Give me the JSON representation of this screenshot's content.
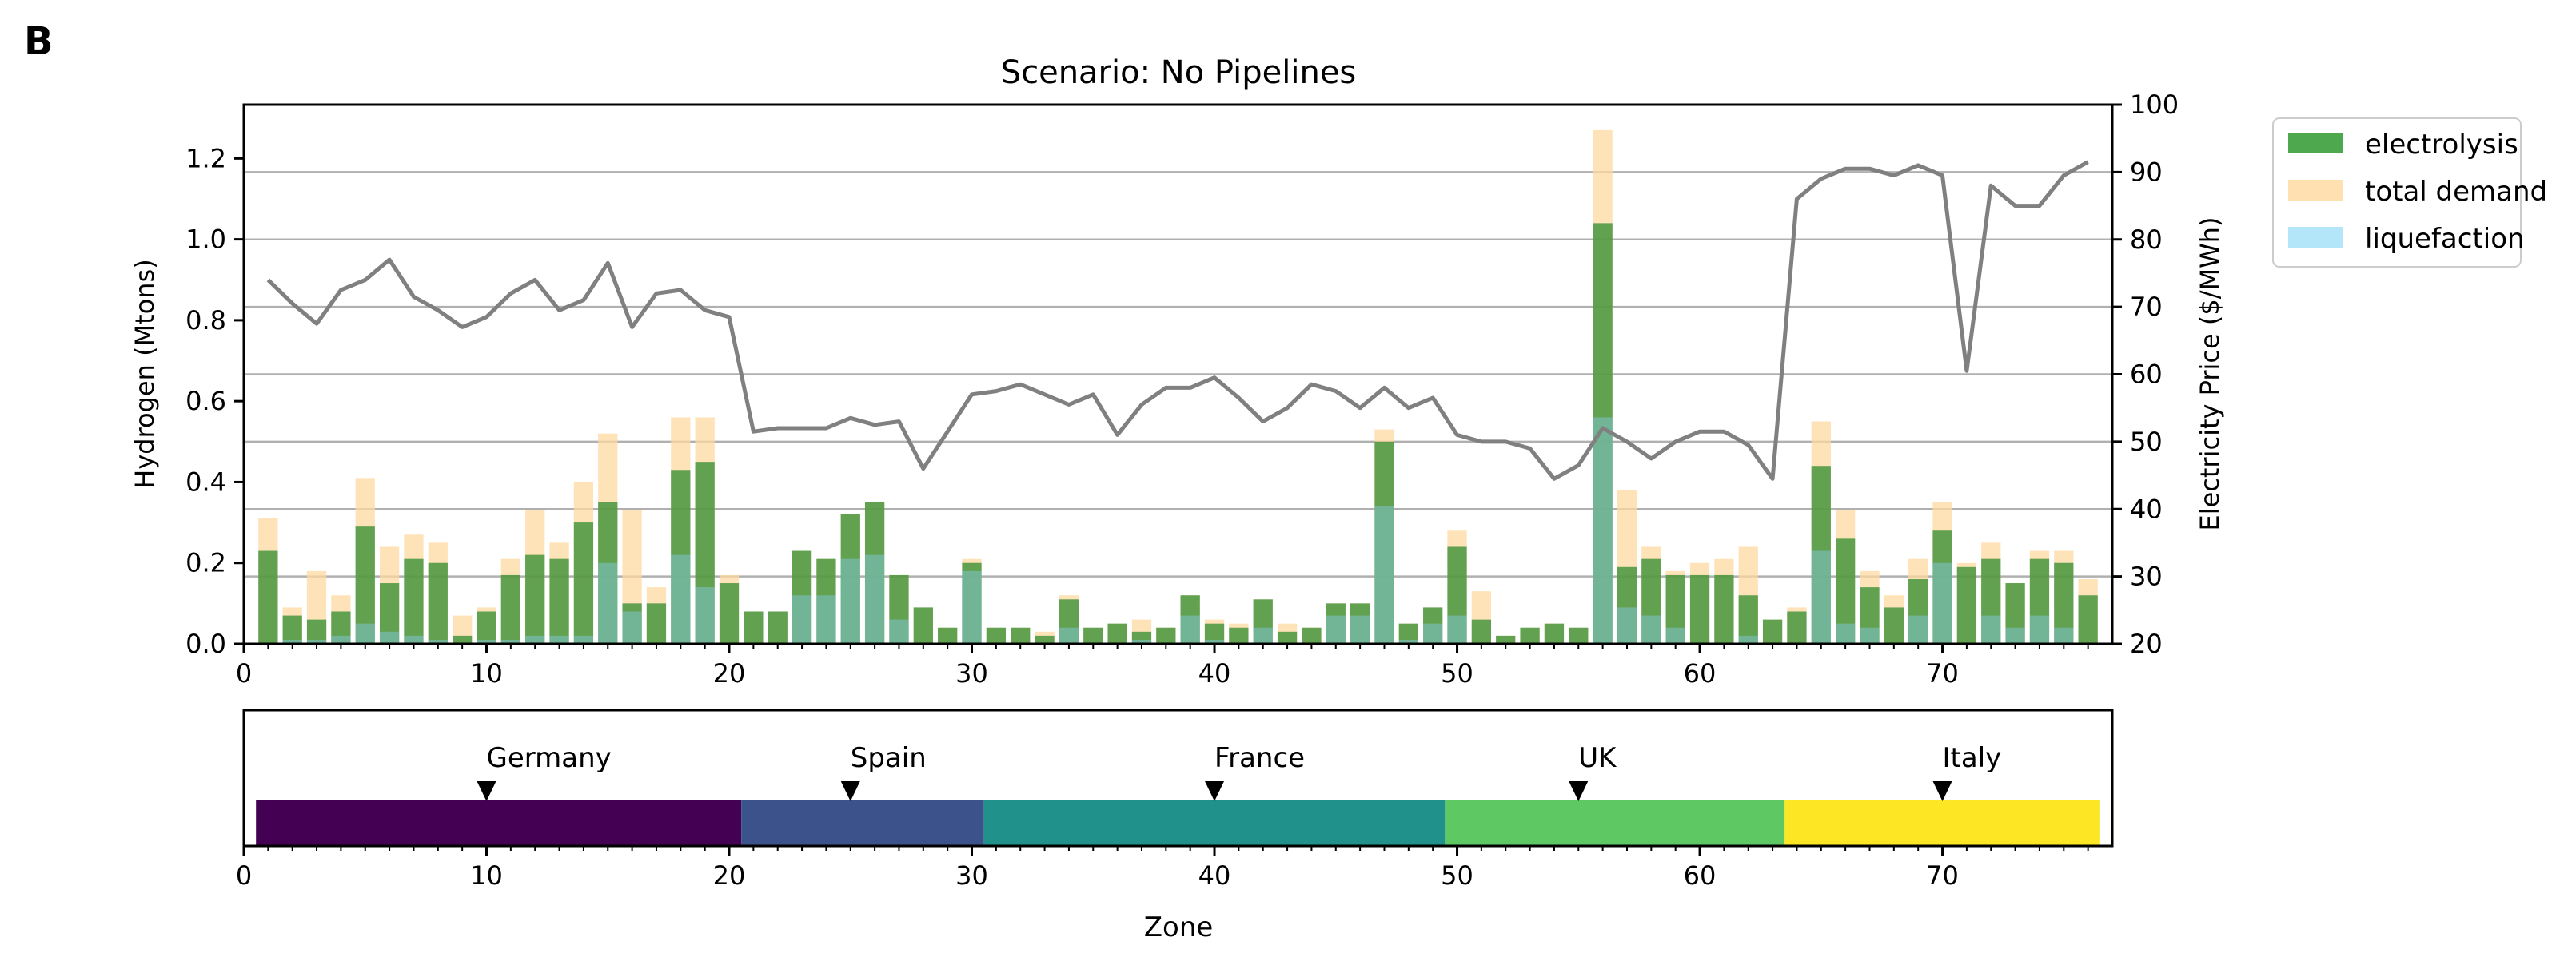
{
  "panel_label": "B",
  "chart_data": [
    {
      "type": "bar+line",
      "title": "Scenario: No Pipelines",
      "xlabel": "",
      "ylabel": "Hydrogen (Mtons)",
      "y2label": "Electricity Price ($/MWh)",
      "xlim": [
        0,
        77
      ],
      "ylim": [
        0,
        1.333
      ],
      "y2lim": [
        20,
        100
      ],
      "xticks": [
        0,
        10,
        20,
        30,
        40,
        50,
        60,
        70
      ],
      "yticks": [
        0.0,
        0.2,
        0.4,
        0.6,
        0.8,
        1.0,
        1.2
      ],
      "ytick_labels": [
        "0.0",
        "0.2",
        "0.4",
        "0.6",
        "0.8",
        "1.0",
        "1.2"
      ],
      "y2ticks": [
        20,
        30,
        40,
        50,
        60,
        70,
        80,
        90,
        100
      ],
      "grid": "horizontal lines at right-axis ticks",
      "legend_position": "outside-right",
      "colors": {
        "electrolysis": "#2e8b2e",
        "total_demand": "#ffd9a0",
        "liquefaction": "#87ceeb",
        "price_line": "#808080"
      },
      "zones": [
        1,
        2,
        3,
        4,
        5,
        6,
        7,
        8,
        9,
        10,
        11,
        12,
        13,
        14,
        15,
        16,
        17,
        18,
        19,
        20,
        21,
        22,
        23,
        24,
        25,
        26,
        27,
        28,
        29,
        30,
        31,
        32,
        33,
        34,
        35,
        36,
        37,
        38,
        39,
        40,
        41,
        42,
        43,
        44,
        45,
        46,
        47,
        48,
        49,
        50,
        51,
        52,
        53,
        54,
        55,
        56,
        57,
        58,
        59,
        60,
        61,
        62,
        63,
        64,
        65,
        66,
        67,
        68,
        69,
        70,
        71,
        72,
        73,
        74,
        75,
        76
      ],
      "series": [
        {
          "name": "electrolysis",
          "kind": "bar",
          "values": [
            0.23,
            0.07,
            0.06,
            0.08,
            0.29,
            0.15,
            0.21,
            0.2,
            0.02,
            0.08,
            0.17,
            0.22,
            0.21,
            0.3,
            0.35,
            0.1,
            0.1,
            0.43,
            0.45,
            0.15,
            0.08,
            0.08,
            0.23,
            0.21,
            0.32,
            0.35,
            0.17,
            0.09,
            0.04,
            0.2,
            0.04,
            0.04,
            0.02,
            0.11,
            0.04,
            0.05,
            0.03,
            0.04,
            0.12,
            0.05,
            0.04,
            0.11,
            0.03,
            0.04,
            0.1,
            0.1,
            0.5,
            0.05,
            0.09,
            0.24,
            0.06,
            0.02,
            0.04,
            0.05,
            0.04,
            1.04,
            0.19,
            0.21,
            0.17,
            0.17,
            0.17,
            0.12,
            0.06,
            0.08,
            0.44,
            0.26,
            0.14,
            0.09,
            0.16,
            0.28,
            0.19,
            0.21,
            0.15,
            0.21,
            0.2,
            0.12
          ]
        },
        {
          "name": "total demand",
          "kind": "bar",
          "values": [
            0.31,
            0.09,
            0.18,
            0.12,
            0.41,
            0.24,
            0.27,
            0.25,
            0.07,
            0.09,
            0.21,
            0.33,
            0.25,
            0.4,
            0.52,
            0.33,
            0.14,
            0.56,
            0.56,
            0.17,
            0.08,
            0.08,
            0.23,
            0.21,
            0.32,
            0.35,
            0.17,
            0.09,
            0.04,
            0.21,
            0.04,
            0.04,
            0.03,
            0.12,
            0.04,
            0.05,
            0.06,
            0.04,
            0.12,
            0.06,
            0.05,
            0.11,
            0.05,
            0.04,
            0.1,
            0.1,
            0.53,
            0.05,
            0.09,
            0.28,
            0.13,
            0.02,
            0.04,
            0.05,
            0.04,
            1.27,
            0.38,
            0.24,
            0.18,
            0.2,
            0.21,
            0.24,
            0.06,
            0.09,
            0.55,
            0.33,
            0.18,
            0.12,
            0.21,
            0.35,
            0.2,
            0.25,
            0.15,
            0.23,
            0.23,
            0.16
          ]
        },
        {
          "name": "liquefaction",
          "kind": "bar",
          "values": [
            0.0,
            0.01,
            0.01,
            0.02,
            0.05,
            0.03,
            0.02,
            0.01,
            0.0,
            0.01,
            0.01,
            0.02,
            0.02,
            0.02,
            0.2,
            0.08,
            0.0,
            0.22,
            0.14,
            0.0,
            0.0,
            0.0,
            0.12,
            0.12,
            0.21,
            0.22,
            0.06,
            0.0,
            0.0,
            0.18,
            0.0,
            0.0,
            0.0,
            0.04,
            0.0,
            0.0,
            0.01,
            0.0,
            0.07,
            0.01,
            0.0,
            0.04,
            0.0,
            0.0,
            0.07,
            0.07,
            0.34,
            0.01,
            0.05,
            0.07,
            0.0,
            0.0,
            0.0,
            0.0,
            0.0,
            0.56,
            0.09,
            0.07,
            0.04,
            0.0,
            0.0,
            0.02,
            0.0,
            0.0,
            0.23,
            0.05,
            0.04,
            0.0,
            0.07,
            0.2,
            0.0,
            0.07,
            0.04,
            0.07,
            0.04,
            0.0
          ]
        },
        {
          "name": "electricity price",
          "kind": "line",
          "axis": "right",
          "values": [
            74,
            70.5,
            67.5,
            72.5,
            74,
            77,
            71.5,
            69.5,
            67,
            68.5,
            72,
            74,
            69.5,
            71,
            76.5,
            67,
            72,
            72.5,
            69.5,
            68.5,
            51.5,
            52,
            52,
            52,
            53.5,
            52.5,
            53,
            46,
            51.5,
            57,
            57.5,
            58.5,
            57,
            55.5,
            57,
            51,
            55.5,
            58,
            58,
            59.5,
            56.5,
            53,
            55,
            58.5,
            57.5,
            55,
            58,
            55,
            56.5,
            51,
            50,
            50,
            49,
            44.5,
            46.5,
            52,
            50,
            47.5,
            50,
            51.5,
            51.5,
            49.5,
            44.5,
            86,
            89,
            90.5,
            90.5,
            89.5,
            91,
            89.5,
            60.5,
            88,
            85,
            85,
            89.5,
            91.5
          ]
        }
      ]
    },
    {
      "type": "bar",
      "xlabel": "Zone",
      "xlim": [
        0,
        77
      ],
      "xticks": [
        0,
        10,
        20,
        30,
        40,
        50,
        60,
        70
      ],
      "countries": [
        {
          "name": "Germany",
          "start": 0.5,
          "end": 20.5,
          "marker": 10,
          "color": "#440154"
        },
        {
          "name": "Spain",
          "start": 20.5,
          "end": 30.5,
          "marker": 25,
          "color": "#3b528b"
        },
        {
          "name": "France",
          "start": 30.5,
          "end": 49.5,
          "marker": 40,
          "color": "#21918c"
        },
        {
          "name": "UK",
          "start": 49.5,
          "end": 63.5,
          "marker": 55,
          "color": "#5ec962"
        },
        {
          "name": "Italy",
          "start": 63.5,
          "end": 76.5,
          "marker": 70,
          "color": "#fde725"
        }
      ]
    }
  ]
}
